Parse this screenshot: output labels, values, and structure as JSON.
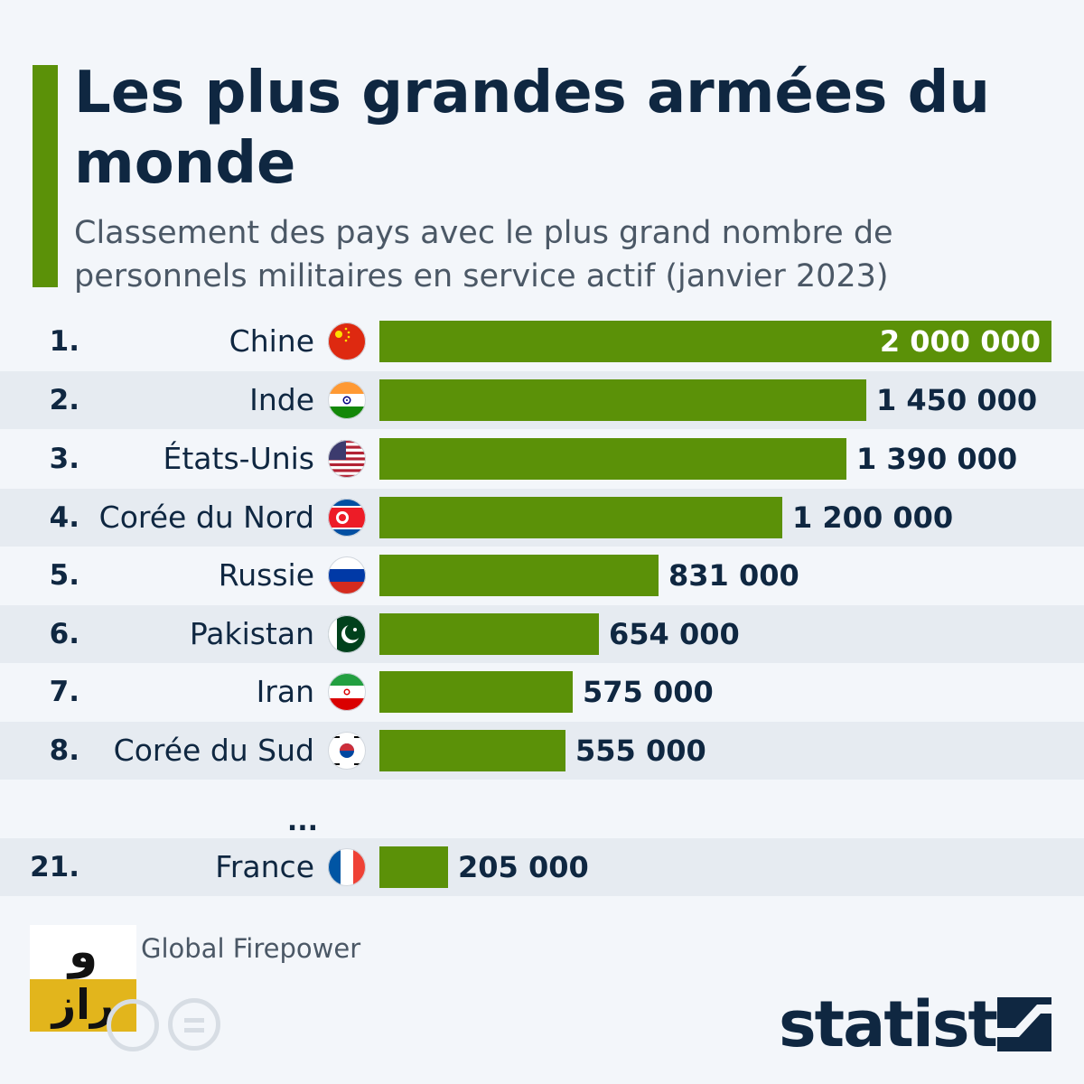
{
  "title": "Les plus grandes armées du monde",
  "subtitle": "Classement des pays avec le plus grand nombre de personnels militaires en service actif (janvier 2023)",
  "source": "Global Firepower",
  "brand": "statista",
  "ellipsis": "...",
  "colors": {
    "bar": "#5b9108",
    "text": "#0f2741",
    "alt_row": "#e6ebf1"
  },
  "logo": {
    "glyph_top": "و",
    "glyph_bottom": "راز"
  },
  "chart_data": {
    "type": "bar",
    "orientation": "horizontal",
    "categories": [
      "Chine",
      "Inde",
      "États-Unis",
      "Corée du Nord",
      "Russie",
      "Pakistan",
      "Iran",
      "Corée du Sud",
      "France"
    ],
    "ranks": [
      "1.",
      "2.",
      "3.",
      "4.",
      "5.",
      "6.",
      "7.",
      "8.",
      "21."
    ],
    "values": [
      2000000,
      1450000,
      1390000,
      1200000,
      831000,
      654000,
      575000,
      555000,
      205000
    ],
    "value_labels": [
      "2 000 000",
      "1 450 000",
      "1 390 000",
      "1 200 000",
      "831 000",
      "654 000",
      "575 000",
      "555 000",
      "205 000"
    ],
    "flags": [
      "china-flag-icon",
      "india-flag-icon",
      "usa-flag-icon",
      "north-korea-flag-icon",
      "russia-flag-icon",
      "pakistan-flag-icon",
      "iran-flag-icon",
      "south-korea-flag-icon",
      "france-flag-icon"
    ],
    "xlim": [
      0,
      2000000
    ],
    "grid": false
  }
}
